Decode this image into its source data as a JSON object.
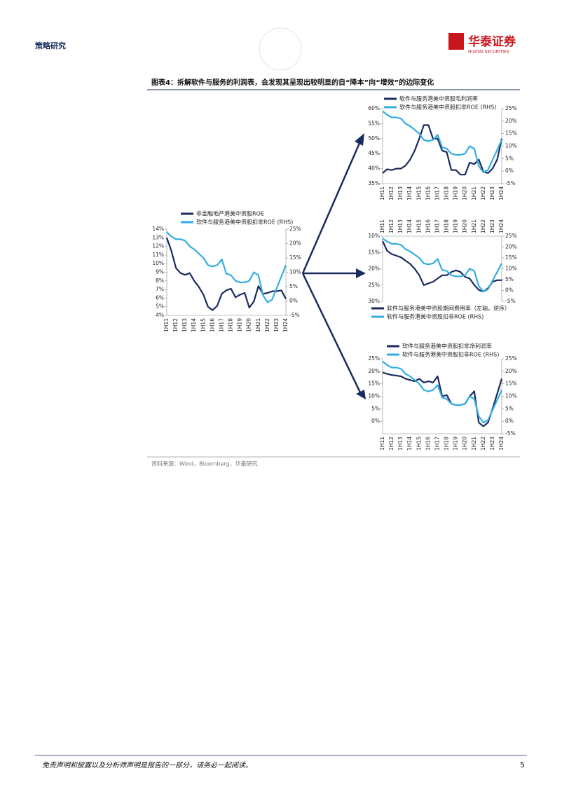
{
  "header": {
    "section": "策略研究",
    "logo": "华泰证券",
    "logo_en": "HUATAI SECURITIES"
  },
  "figure_title": "图表4：拆解软件与服务的利润表，会发现其呈现出较明显的自“降本”向“增效”的边际变化",
  "chart_data": [
    {
      "type": "line",
      "categories": [
        "1H11",
        null,
        "1H12",
        null,
        "1H13",
        null,
        "1H14",
        null,
        "1H15",
        null,
        "1H16",
        null,
        "1H17",
        null,
        "1H18",
        null,
        "1H19",
        null,
        "1H20",
        null,
        "1H21",
        null,
        "1H22",
        null,
        "1H23",
        null,
        "1H24"
      ],
      "series": [
        {
          "name": "非金融地产港美中资股ROE",
          "color": "#1a2b5e",
          "values": [
            13,
            11.5,
            9.5,
            8.9,
            8.7,
            8.9,
            8,
            7.3,
            6.4,
            5,
            4.6,
            5.1,
            6.5,
            6.9,
            7.1,
            6.1,
            6.4,
            6.6,
            4.9,
            5.6,
            7.4,
            6.5,
            6.6,
            6.8,
            6.8,
            6.9,
            5.9
          ]
        },
        {
          "name": "软件与服务港美中资股扣非ROE (RHS)",
          "color": "#33aee3",
          "axis": "y2",
          "values": [
            24,
            22.5,
            21.5,
            21.5,
            21,
            19,
            18,
            16.5,
            15,
            12.5,
            12,
            12.5,
            14.5,
            9.5,
            9,
            7,
            6.5,
            6.5,
            7,
            10,
            9,
            2,
            -0.5,
            0.5,
            4.5,
            8.5,
            12.5
          ]
        }
      ],
      "ylim": [
        4,
        14
      ],
      "yticks": [
        {
          "value": 4,
          "label": "4%"
        },
        {
          "value": 5,
          "label": "5%"
        },
        {
          "value": 6,
          "label": "6%"
        },
        {
          "value": 7,
          "label": "7%"
        },
        {
          "value": 8,
          "label": "8%"
        },
        {
          "value": 9,
          "label": "9%"
        },
        {
          "value": 10,
          "label": "10%"
        },
        {
          "value": 11,
          "label": "11%"
        },
        {
          "value": 12,
          "label": "12%"
        },
        {
          "value": 13,
          "label": "13%"
        },
        {
          "value": 14,
          "label": "14%"
        }
      ],
      "y2lim": [
        -5,
        25
      ],
      "y2ticks": [
        {
          "value": -5,
          "label": "-5%"
        },
        {
          "value": 0,
          "label": "0%"
        },
        {
          "value": 5,
          "label": "5%"
        },
        {
          "value": 10,
          "label": "10%"
        },
        {
          "value": 15,
          "label": "15%"
        },
        {
          "value": 20,
          "label": "20%"
        },
        {
          "value": 25,
          "label": "25%"
        }
      ],
      "legend": "top",
      "xaxis": "bottom"
    },
    {
      "type": "line",
      "categories": [
        "1H11",
        null,
        "1H12",
        null,
        "1H13",
        null,
        "1H14",
        null,
        "1H15",
        null,
        "1H16",
        null,
        "1H17",
        null,
        "1H18",
        null,
        "1H19",
        null,
        "1H20",
        null,
        "1H21",
        null,
        "1H22",
        null,
        "1H23",
        null,
        "1H24"
      ],
      "series": [
        {
          "name": "软件与服务港美中资股毛利润率",
          "color": "#1a2b5e",
          "values": [
            38.5,
            39.8,
            39.5,
            40,
            40,
            41,
            43,
            46,
            50,
            54.5,
            54.5,
            50,
            50,
            46,
            45.5,
            39.5,
            39.5,
            38,
            38,
            42,
            41.5,
            43,
            39,
            38.5,
            40,
            43,
            50
          ]
        },
        {
          "name": "软件与服务港美中资股扣非ROE (RHS)",
          "color": "#33aee3",
          "axis": "y2",
          "values": [
            24,
            22.5,
            21.5,
            21.5,
            21,
            19,
            18,
            16.5,
            15,
            12.5,
            12,
            12.5,
            14.5,
            9.5,
            9,
            7,
            6.5,
            6.5,
            7,
            10,
            9,
            2,
            -0.5,
            0.5,
            4.5,
            8.5,
            12.5
          ]
        }
      ],
      "ylim": [
        35,
        60
      ],
      "yticks": [
        {
          "value": 35,
          "label": "35%"
        },
        {
          "value": 40,
          "label": "40%"
        },
        {
          "value": 45,
          "label": "45%"
        },
        {
          "value": 50,
          "label": "50%"
        },
        {
          "value": 55,
          "label": "55%"
        },
        {
          "value": 60,
          "label": "60%"
        }
      ],
      "y2lim": [
        -5,
        25
      ],
      "y2ticks": [
        {
          "value": -5,
          "label": "-5%"
        },
        {
          "value": 0,
          "label": "0%"
        },
        {
          "value": 5,
          "label": "5%"
        },
        {
          "value": 10,
          "label": "10%"
        },
        {
          "value": 15,
          "label": "15%"
        },
        {
          "value": 20,
          "label": "20%"
        },
        {
          "value": 25,
          "label": "25%"
        }
      ],
      "legend": "top",
      "xaxis": "bottom"
    },
    {
      "type": "line",
      "categories": [
        "1H11",
        null,
        "1H12",
        null,
        "1H13",
        null,
        "1H14",
        null,
        "1H15",
        null,
        "1H16",
        null,
        "1H17",
        null,
        "1H18",
        null,
        "1H19",
        null,
        "1H20",
        null,
        "1H21",
        null,
        "1H22",
        null,
        "1H23",
        null,
        "1H24"
      ],
      "series": [
        {
          "name": "软件与服务港美中资股期间费用率（左轴，逆序）",
          "color": "#1a2b5e",
          "values": [
            11.5,
            14.5,
            15.5,
            16,
            16.5,
            17.5,
            18.5,
            20,
            22,
            25,
            24.5,
            24,
            23,
            22,
            22,
            21,
            20.5,
            21,
            22.5,
            23,
            25,
            26.5,
            27,
            26,
            24,
            23.5,
            23.5
          ]
        },
        {
          "name": "软件与服务港美中资股扣非ROE (RHS)",
          "color": "#33aee3",
          "axis": "y2",
          "values": [
            24,
            22.5,
            21.5,
            21.5,
            21,
            19,
            18,
            16.5,
            15,
            12.5,
            12,
            12.5,
            14.5,
            9.5,
            9,
            7,
            6.5,
            6.5,
            7,
            10,
            9,
            2,
            -0.5,
            0.5,
            4.5,
            8.5,
            12.5
          ]
        }
      ],
      "ylim": [
        10,
        30
      ],
      "y_inverted": true,
      "yticks": [
        {
          "value": 10,
          "label": "10%"
        },
        {
          "value": 15,
          "label": "15%"
        },
        {
          "value": 20,
          "label": "20%"
        },
        {
          "value": 25,
          "label": "25%"
        },
        {
          "value": 30,
          "label": "30%"
        }
      ],
      "y2lim": [
        -5,
        25
      ],
      "y2ticks": [
        {
          "value": -5,
          "label": "-5%"
        },
        {
          "value": 0,
          "label": "0%"
        },
        {
          "value": 5,
          "label": "5%"
        },
        {
          "value": 10,
          "label": "10%"
        },
        {
          "value": 15,
          "label": "15%"
        },
        {
          "value": 20,
          "label": "20%"
        },
        {
          "value": 25,
          "label": "25%"
        }
      ],
      "legend": "bottom",
      "xaxis": "top"
    },
    {
      "type": "line",
      "categories": [
        "1H11",
        null,
        "1H12",
        null,
        "1H13",
        null,
        "1H14",
        null,
        "1H15",
        null,
        "1H16",
        null,
        "1H17",
        null,
        "1H18",
        null,
        "1H19",
        null,
        "1H20",
        null,
        "1H21",
        null,
        "1H22",
        null,
        "1H23",
        null,
        "1H24"
      ],
      "series": [
        {
          "name": "软件与服务港美中资股扣非净利润率",
          "color": "#1a2b5e",
          "values": [
            19.5,
            19,
            18.5,
            18.3,
            18,
            17,
            16.5,
            16,
            17,
            15.5,
            16,
            15.5,
            18,
            10,
            10.5,
            7,
            6.5,
            6.5,
            7,
            10,
            12,
            -0.5,
            -2,
            -0.5,
            5,
            11,
            17
          ]
        },
        {
          "name": "软件与服务港美中资股扣非ROE (RHS)",
          "color": "#33aee3",
          "axis": "y2",
          "values": [
            24,
            22.5,
            21.5,
            21.5,
            21,
            19,
            18,
            16.5,
            15,
            12.5,
            12,
            12.5,
            14.5,
            9.5,
            9,
            7,
            6.5,
            6.5,
            7,
            10,
            9,
            2,
            -0.5,
            0.5,
            4.5,
            8.5,
            12.5
          ]
        }
      ],
      "ylim": [
        -5,
        25
      ],
      "yticks": [
        {
          "value": 0,
          "label": "0%"
        },
        {
          "value": 5,
          "label": "5%"
        },
        {
          "value": 10,
          "label": "10%"
        },
        {
          "value": 15,
          "label": "15%"
        },
        {
          "value": 20,
          "label": "20%"
        },
        {
          "value": 25,
          "label": "25%"
        }
      ],
      "y2lim": [
        -5,
        25
      ],
      "y2ticks": [
        {
          "value": -5,
          "label": "-5%"
        },
        {
          "value": 0,
          "label": "0%"
        },
        {
          "value": 5,
          "label": "5%"
        },
        {
          "value": 10,
          "label": "10%"
        },
        {
          "value": 15,
          "label": "15%"
        },
        {
          "value": 20,
          "label": "20%"
        },
        {
          "value": 25,
          "label": "25%"
        }
      ],
      "legend": "top",
      "xaxis": "bottom"
    }
  ],
  "source": "资料来源：Wind，Bloomberg，华泰研究",
  "footer": {
    "disclaimer": "免责声明和披露以及分析师声明是报告的一部分，请务必一起阅读。",
    "page": "5"
  }
}
